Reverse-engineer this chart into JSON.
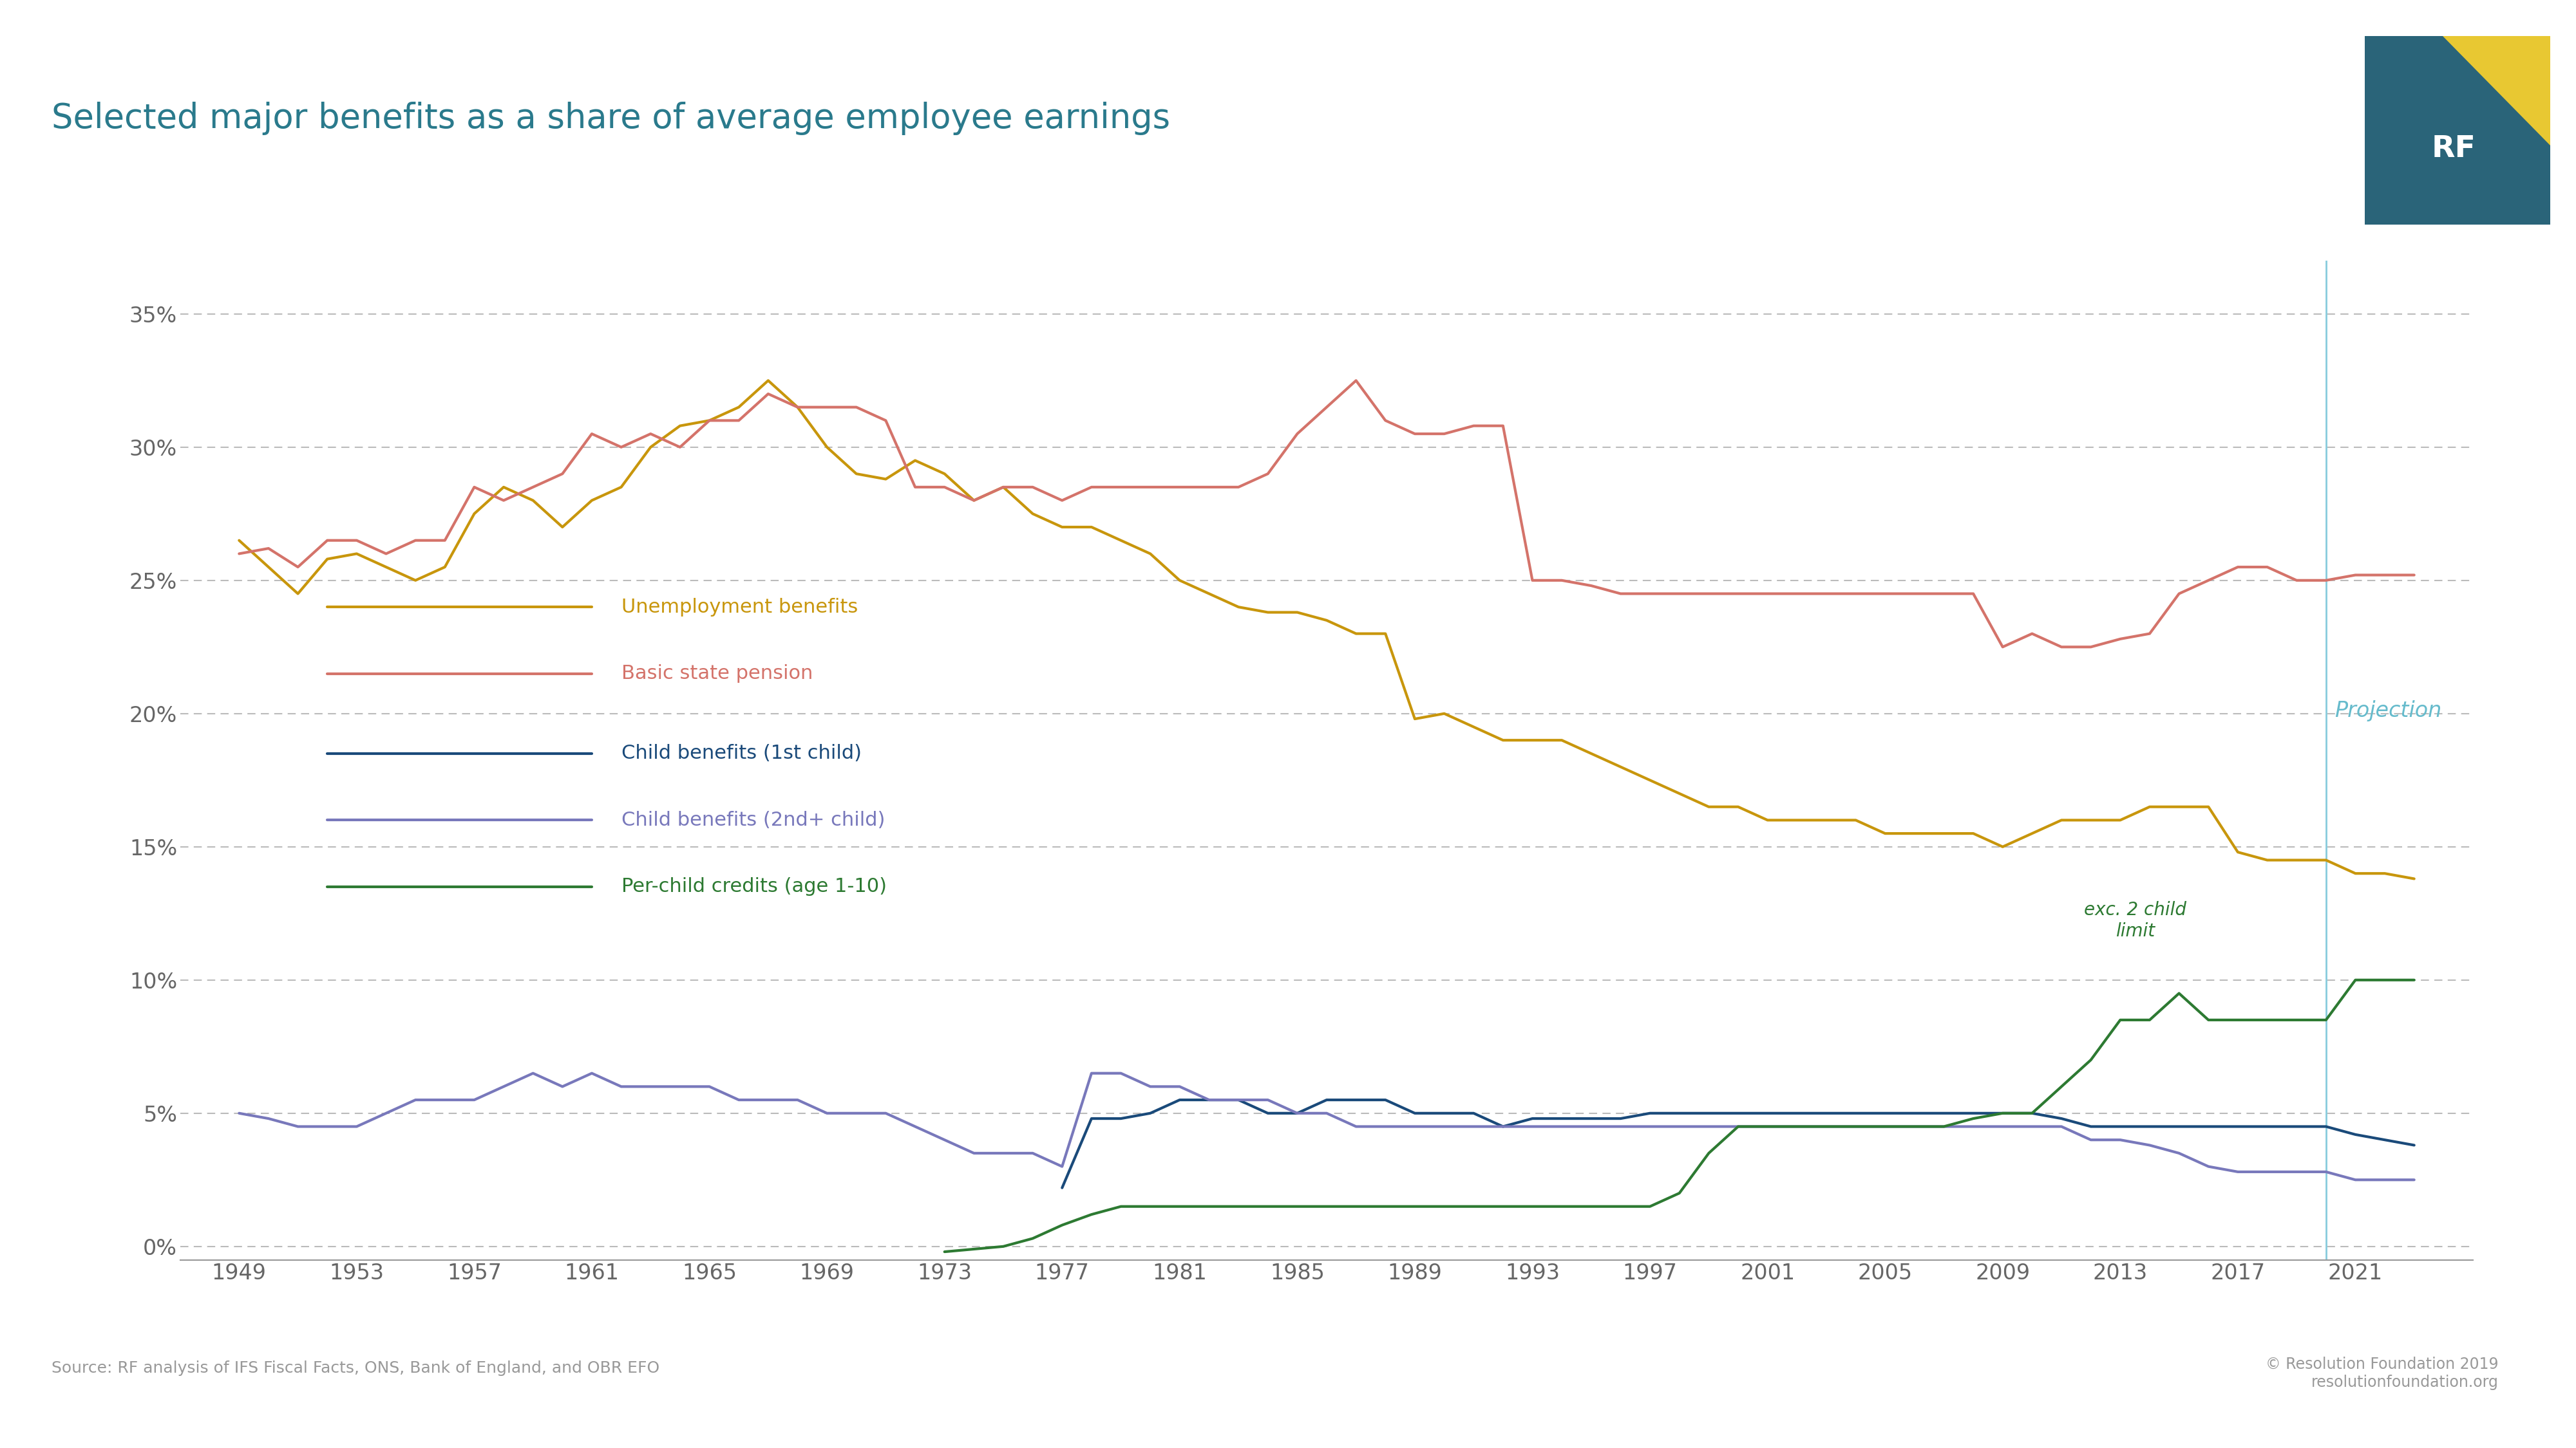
{
  "title": "Selected major benefits as a share of average employee earnings",
  "source": "Source: RF analysis of IFS Fiscal Facts, ONS, Bank of England, and OBR EFO",
  "copyright": "© Resolution Foundation 2019\nresolutionfoundation.org",
  "projection_label": "Projection",
  "annotation_label": "exc. 2 child\nlimit",
  "background_color": "#ffffff",
  "title_color": "#2a7a8c",
  "projection_line_x": 2020,
  "yticks": [
    0,
    5,
    10,
    15,
    20,
    25,
    30,
    35
  ],
  "xticks": [
    1949,
    1953,
    1957,
    1961,
    1965,
    1969,
    1973,
    1977,
    1981,
    1985,
    1989,
    1993,
    1997,
    2001,
    2005,
    2009,
    2013,
    2017,
    2021
  ],
  "ylim": [
    -0.5,
    37
  ],
  "xlim": [
    1947,
    2025
  ],
  "unemployment_color": "#c8960c",
  "pension_color": "#d4736a",
  "child1_color": "#1a4a7a",
  "child2_color": "#7878bb",
  "child_credits_color": "#2d7a32",
  "unemployment_label": "Unemployment benefits",
  "pension_label": "Basic state pension",
  "child1_label": "Child benefits (1st child)",
  "child2_label": "Child benefits (2nd+ child)",
  "child_credits_label": "Per-child credits (age 1-10)",
  "unemployment": {
    "years": [
      1949,
      1950,
      1951,
      1952,
      1953,
      1954,
      1955,
      1956,
      1957,
      1958,
      1959,
      1960,
      1961,
      1962,
      1963,
      1964,
      1965,
      1966,
      1967,
      1968,
      1969,
      1970,
      1971,
      1972,
      1973,
      1974,
      1975,
      1976,
      1977,
      1978,
      1979,
      1980,
      1981,
      1982,
      1983,
      1984,
      1985,
      1986,
      1987,
      1988,
      1989,
      1990,
      1991,
      1992,
      1993,
      1994,
      1995,
      1996,
      1997,
      1998,
      1999,
      2000,
      2001,
      2002,
      2003,
      2004,
      2005,
      2006,
      2007,
      2008,
      2009,
      2010,
      2011,
      2012,
      2013,
      2014,
      2015,
      2016,
      2017,
      2018,
      2019,
      2020,
      2021,
      2022,
      2023
    ],
    "values": [
      26.5,
      25.5,
      24.5,
      25.8,
      26.0,
      25.5,
      25.0,
      25.5,
      27.5,
      28.5,
      28.0,
      27.0,
      28.0,
      28.5,
      30.0,
      30.8,
      31.0,
      31.5,
      32.5,
      31.5,
      30.0,
      29.0,
      28.8,
      29.5,
      29.0,
      28.0,
      28.5,
      27.5,
      27.0,
      27.0,
      26.5,
      26.0,
      25.0,
      24.5,
      24.0,
      23.8,
      23.8,
      23.5,
      23.0,
      23.0,
      19.8,
      20.0,
      19.5,
      19.0,
      19.0,
      19.0,
      18.5,
      18.0,
      17.5,
      17.0,
      16.5,
      16.5,
      16.0,
      16.0,
      16.0,
      16.0,
      15.5,
      15.5,
      15.5,
      15.5,
      15.0,
      15.5,
      16.0,
      16.0,
      16.0,
      16.5,
      16.5,
      16.5,
      14.8,
      14.5,
      14.5,
      14.5,
      14.0,
      14.0,
      13.8
    ]
  },
  "pension": {
    "years": [
      1949,
      1950,
      1951,
      1952,
      1953,
      1954,
      1955,
      1956,
      1957,
      1958,
      1959,
      1960,
      1961,
      1962,
      1963,
      1964,
      1965,
      1966,
      1967,
      1968,
      1969,
      1970,
      1971,
      1972,
      1973,
      1974,
      1975,
      1976,
      1977,
      1978,
      1979,
      1980,
      1981,
      1982,
      1983,
      1984,
      1985,
      1986,
      1987,
      1988,
      1989,
      1990,
      1991,
      1992,
      1993,
      1994,
      1995,
      1996,
      1997,
      1998,
      1999,
      2000,
      2001,
      2002,
      2003,
      2004,
      2005,
      2006,
      2007,
      2008,
      2009,
      2010,
      2011,
      2012,
      2013,
      2014,
      2015,
      2016,
      2017,
      2018,
      2019,
      2020,
      2021,
      2022,
      2023
    ],
    "values": [
      26.0,
      26.2,
      25.5,
      26.5,
      26.5,
      26.0,
      26.5,
      26.5,
      28.5,
      28.0,
      28.5,
      29.0,
      30.5,
      30.0,
      30.5,
      30.0,
      31.0,
      31.0,
      32.0,
      31.5,
      31.5,
      31.5,
      31.0,
      28.5,
      28.5,
      28.0,
      28.5,
      28.5,
      28.0,
      28.5,
      28.5,
      28.5,
      28.5,
      28.5,
      28.5,
      29.0,
      30.5,
      31.5,
      32.5,
      31.0,
      30.5,
      30.5,
      30.8,
      30.8,
      25.0,
      25.0,
      24.8,
      24.5,
      24.5,
      24.5,
      24.5,
      24.5,
      24.5,
      24.5,
      24.5,
      24.5,
      24.5,
      24.5,
      24.5,
      24.5,
      22.5,
      23.0,
      22.5,
      22.5,
      22.8,
      23.0,
      24.5,
      25.0,
      25.5,
      25.5,
      25.0,
      25.0,
      25.2,
      25.2,
      25.2
    ]
  },
  "child1": {
    "years": [
      1977,
      1978,
      1979,
      1980,
      1981,
      1982,
      1983,
      1984,
      1985,
      1986,
      1987,
      1988,
      1989,
      1990,
      1991,
      1992,
      1993,
      1994,
      1995,
      1996,
      1997,
      1998,
      1999,
      2000,
      2001,
      2002,
      2003,
      2004,
      2005,
      2006,
      2007,
      2008,
      2009,
      2010,
      2011,
      2012,
      2013,
      2014,
      2015,
      2016,
      2017,
      2018,
      2019,
      2020,
      2021,
      2022,
      2023
    ],
    "values": [
      2.2,
      4.8,
      4.8,
      5.0,
      5.5,
      5.5,
      5.5,
      5.0,
      5.0,
      5.5,
      5.5,
      5.5,
      5.0,
      5.0,
      5.0,
      4.5,
      4.8,
      4.8,
      4.8,
      4.8,
      5.0,
      5.0,
      5.0,
      5.0,
      5.0,
      5.0,
      5.0,
      5.0,
      5.0,
      5.0,
      5.0,
      5.0,
      5.0,
      5.0,
      4.8,
      4.5,
      4.5,
      4.5,
      4.5,
      4.5,
      4.5,
      4.5,
      4.5,
      4.5,
      4.2,
      4.0,
      3.8
    ]
  },
  "child2": {
    "years": [
      1949,
      1950,
      1951,
      1952,
      1953,
      1954,
      1955,
      1956,
      1957,
      1958,
      1959,
      1960,
      1961,
      1962,
      1963,
      1964,
      1965,
      1966,
      1967,
      1968,
      1969,
      1970,
      1971,
      1972,
      1973,
      1974,
      1975,
      1976,
      1977,
      1978,
      1979,
      1980,
      1981,
      1982,
      1983,
      1984,
      1985,
      1986,
      1987,
      1988,
      1989,
      1990,
      1991,
      1992,
      1993,
      1994,
      1995,
      1996,
      1997,
      1998,
      1999,
      2000,
      2001,
      2002,
      2003,
      2004,
      2005,
      2006,
      2007,
      2008,
      2009,
      2010,
      2011,
      2012,
      2013,
      2014,
      2015,
      2016,
      2017,
      2018,
      2019,
      2020,
      2021,
      2022,
      2023
    ],
    "values": [
      5.0,
      4.8,
      4.5,
      4.5,
      4.5,
      5.0,
      5.5,
      5.5,
      5.5,
      6.0,
      6.5,
      6.0,
      6.5,
      6.0,
      6.0,
      6.0,
      6.0,
      5.5,
      5.5,
      5.5,
      5.0,
      5.0,
      5.0,
      4.5,
      4.0,
      3.5,
      3.5,
      3.5,
      3.0,
      6.5,
      6.5,
      6.0,
      6.0,
      5.5,
      5.5,
      5.5,
      5.0,
      5.0,
      4.5,
      4.5,
      4.5,
      4.5,
      4.5,
      4.5,
      4.5,
      4.5,
      4.5,
      4.5,
      4.5,
      4.5,
      4.5,
      4.5,
      4.5,
      4.5,
      4.5,
      4.5,
      4.5,
      4.5,
      4.5,
      4.5,
      4.5,
      4.5,
      4.5,
      4.0,
      4.0,
      3.8,
      3.5,
      3.0,
      2.8,
      2.8,
      2.8,
      2.8,
      2.5,
      2.5,
      2.5
    ]
  },
  "child_credits": {
    "years": [
      1973,
      1974,
      1975,
      1976,
      1977,
      1978,
      1979,
      1980,
      1981,
      1982,
      1983,
      1984,
      1985,
      1986,
      1987,
      1988,
      1989,
      1990,
      1991,
      1992,
      1993,
      1994,
      1995,
      1996,
      1997,
      1998,
      1999,
      2000,
      2001,
      2002,
      2003,
      2004,
      2005,
      2006,
      2007,
      2008,
      2009,
      2010,
      2011,
      2012,
      2013,
      2014,
      2015,
      2016,
      2017,
      2018,
      2019,
      2020,
      2021,
      2022,
      2023
    ],
    "values": [
      -0.2,
      -0.1,
      0.0,
      0.3,
      0.8,
      1.2,
      1.5,
      1.5,
      1.5,
      1.5,
      1.5,
      1.5,
      1.5,
      1.5,
      1.5,
      1.5,
      1.5,
      1.5,
      1.5,
      1.5,
      1.5,
      1.5,
      1.5,
      1.5,
      1.5,
      2.0,
      3.5,
      4.5,
      4.5,
      4.5,
      4.5,
      4.5,
      4.5,
      4.5,
      4.5,
      4.8,
      5.0,
      5.0,
      6.0,
      7.0,
      8.5,
      8.5,
      9.5,
      8.5,
      8.5,
      8.5,
      8.5,
      8.5,
      10.0,
      10.0,
      10.0
    ]
  }
}
